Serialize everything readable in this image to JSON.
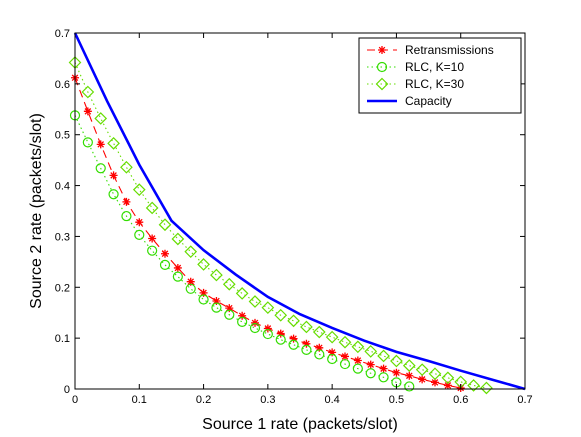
{
  "chart_data": {
    "type": "line",
    "title": "",
    "xlabel": "Source 1 rate (packets/slot)",
    "ylabel": "Source 2 rate (packets/slot)",
    "xlim": [
      0,
      0.7
    ],
    "ylim": [
      0,
      0.7
    ],
    "xticks": [
      "0",
      "0.1",
      "0.2",
      "0.3",
      "0.4",
      "0.5",
      "0.6",
      "0.7"
    ],
    "yticks": [
      "0",
      "0.1",
      "0.2",
      "0.3",
      "0.4",
      "0.5",
      "0.6",
      "0.7"
    ],
    "grid": false,
    "legend_position": "top-right",
    "series": [
      {
        "name": "Retransmissions",
        "color": "#ff0000",
        "line": "dashed",
        "marker": "asterisk",
        "x": [
          0,
          0.02,
          0.04,
          0.06,
          0.08,
          0.1,
          0.12,
          0.14,
          0.16,
          0.18,
          0.2,
          0.22,
          0.24,
          0.26,
          0.28,
          0.3,
          0.32,
          0.34,
          0.36,
          0.38,
          0.4,
          0.42,
          0.44,
          0.46,
          0.48,
          0.5,
          0.52,
          0.54,
          0.56,
          0.58,
          0.6
        ],
        "y": [
          0.612,
          0.546,
          0.481,
          0.42,
          0.368,
          0.328,
          0.296,
          0.266,
          0.238,
          0.211,
          0.189,
          0.173,
          0.159,
          0.144,
          0.13,
          0.119,
          0.109,
          0.099,
          0.089,
          0.081,
          0.072,
          0.064,
          0.056,
          0.048,
          0.04,
          0.032,
          0.026,
          0.019,
          0.013,
          0.007,
          0.002
        ]
      },
      {
        "name": "RLC, K=10",
        "color": "#33dd00",
        "line": "dotted",
        "marker": "circle",
        "x": [
          0,
          0.02,
          0.04,
          0.06,
          0.08,
          0.1,
          0.12,
          0.14,
          0.16,
          0.18,
          0.2,
          0.22,
          0.24,
          0.26,
          0.28,
          0.3,
          0.32,
          0.34,
          0.36,
          0.38,
          0.4,
          0.42,
          0.44,
          0.46,
          0.48,
          0.5,
          0.52
        ],
        "y": [
          0.538,
          0.485,
          0.434,
          0.383,
          0.34,
          0.303,
          0.272,
          0.244,
          0.221,
          0.197,
          0.176,
          0.16,
          0.146,
          0.132,
          0.12,
          0.108,
          0.097,
          0.087,
          0.077,
          0.068,
          0.059,
          0.049,
          0.04,
          0.031,
          0.023,
          0.013,
          0.005
        ]
      },
      {
        "name": "RLC, K=30",
        "color": "#66dd00",
        "line": "dotted",
        "marker": "diamond",
        "x": [
          0,
          0.02,
          0.04,
          0.06,
          0.08,
          0.1,
          0.12,
          0.14,
          0.16,
          0.18,
          0.2,
          0.22,
          0.24,
          0.26,
          0.28,
          0.3,
          0.32,
          0.34,
          0.36,
          0.38,
          0.4,
          0.42,
          0.44,
          0.46,
          0.48,
          0.5,
          0.52,
          0.54,
          0.56,
          0.58,
          0.6,
          0.62,
          0.64
        ],
        "y": [
          0.642,
          0.584,
          0.532,
          0.483,
          0.436,
          0.392,
          0.356,
          0.323,
          0.295,
          0.27,
          0.245,
          0.224,
          0.206,
          0.188,
          0.172,
          0.16,
          0.145,
          0.134,
          0.122,
          0.112,
          0.102,
          0.092,
          0.083,
          0.074,
          0.065,
          0.055,
          0.046,
          0.038,
          0.03,
          0.022,
          0.014,
          0.007,
          0.002
        ]
      },
      {
        "name": "Capacity",
        "color": "#0000ff",
        "line": "solid",
        "marker": "none",
        "x": [
          0,
          0.05,
          0.1,
          0.15,
          0.2,
          0.25,
          0.3,
          0.35,
          0.4,
          0.45,
          0.5,
          0.55,
          0.6,
          0.65,
          0.7
        ],
        "y": [
          0.7,
          0.566,
          0.441,
          0.331,
          0.273,
          0.225,
          0.181,
          0.147,
          0.12,
          0.095,
          0.073,
          0.055,
          0.036,
          0.018,
          0.0
        ]
      }
    ]
  }
}
